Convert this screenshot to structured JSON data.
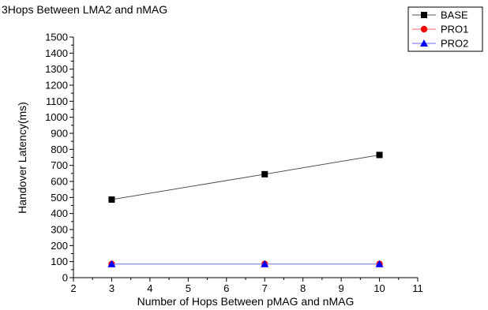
{
  "chart_data": {
    "type": "line",
    "title": "3Hops Between LMA2 and nMAG",
    "xlabel": "Number of Hops Between pMAG and nMAG",
    "ylabel": "Handover Latency(ms)",
    "xlim": [
      2,
      11
    ],
    "ylim": [
      0,
      1500
    ],
    "xticks": [
      2,
      3,
      4,
      5,
      6,
      7,
      8,
      9,
      10,
      11
    ],
    "yticks": [
      0,
      100,
      200,
      300,
      400,
      500,
      600,
      700,
      800,
      900,
      1000,
      1100,
      1200,
      1300,
      1400,
      1500
    ],
    "x": [
      3,
      7,
      10
    ],
    "series": [
      {
        "name": "BASE",
        "values": [
          487,
          645,
          765
        ],
        "color": "#000000",
        "marker": "square"
      },
      {
        "name": "PRO1",
        "values": [
          85,
          85,
          85
        ],
        "color": "#ff0000",
        "marker": "circle"
      },
      {
        "name": "PRO2",
        "values": [
          85,
          85,
          85
        ],
        "color": "#0000ff",
        "marker": "triangle"
      }
    ],
    "legend_position": "top-right",
    "grid": false
  }
}
